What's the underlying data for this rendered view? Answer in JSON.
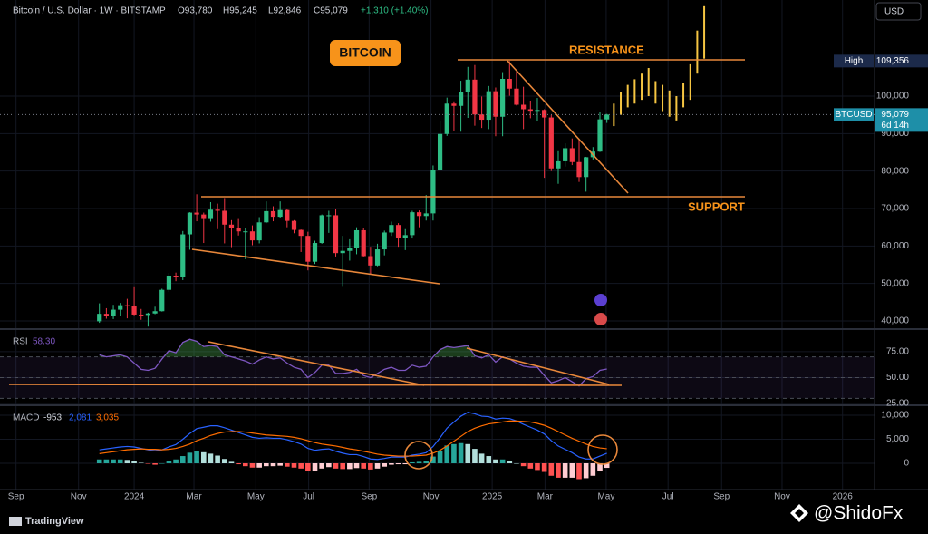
{
  "header": {
    "symbol": "Bitcoin / U.S. Dollar · 1W · BITSTAMP",
    "open": "O93,780",
    "high": "H95,245",
    "low": "L92,846",
    "close": "C95,079",
    "change": "+1,310 (+1.40%)",
    "currency": "USD",
    "footer": "TradingView",
    "watermark": "@ShidoFx"
  },
  "annotations": {
    "badge": "BITCOIN",
    "resistance": "RESISTANCE",
    "support": "SUPPORT"
  },
  "chart_data": [
    {
      "type": "candlestick",
      "title": "Bitcoin / U.S. Dollar",
      "up_color": "#2ebd85",
      "down_color": "#f23645",
      "open": [
        39900,
        41900,
        41400,
        43000,
        44200,
        43900,
        41700,
        41600,
        42000,
        42600,
        48300,
        52100,
        51700,
        63100,
        68900,
        68400,
        67200,
        69700,
        69400,
        65700,
        64900,
        63900,
        63900,
        61500,
        66300,
        69300,
        67800,
        69600,
        66700,
        64300,
        62700,
        55800,
        60800,
        68200,
        68200,
        58100,
        58700,
        59400,
        64200,
        57300,
        54800,
        59100,
        63600,
        65600,
        62100,
        62900,
        69000,
        68000,
        68700,
        80400,
        89900,
        98000,
        97400,
        101200,
        104400,
        95100,
        93700,
        101300,
        94500,
        104600,
        102000,
        97700,
        96500,
        96100,
        96300,
        94300,
        80700,
        82600,
        86100,
        82400,
        78400,
        83700,
        85200,
        93780
      ],
      "high": [
        44700,
        43400,
        44300,
        44800,
        45900,
        49000,
        43200,
        42200,
        43800,
        48600,
        52800,
        52900,
        64000,
        69000,
        73800,
        68900,
        71700,
        71300,
        72800,
        66900,
        67200,
        64700,
        65500,
        67700,
        71900,
        70600,
        71900,
        70000,
        66900,
        64400,
        63800,
        61400,
        68400,
        69400,
        70000,
        62700,
        61800,
        65000,
        64900,
        59800,
        60600,
        64100,
        66500,
        66100,
        64500,
        69400,
        69500,
        73600,
        81500,
        93500,
        99600,
        98600,
        104100,
        107800,
        108300,
        99900,
        102700,
        102300,
        106400,
        109356,
        106500,
        102500,
        98800,
        99500,
        96500,
        95000,
        85300,
        87400,
        88700,
        88500,
        83800,
        86400,
        95800,
        95245
      ],
      "low": [
        39500,
        40600,
        40500,
        41300,
        40700,
        41500,
        40300,
        38500,
        41800,
        42500,
        47700,
        50600,
        50900,
        59000,
        66600,
        60800,
        66500,
        64500,
        60700,
        59700,
        62800,
        56500,
        60200,
        60700,
        66100,
        66600,
        67500,
        65000,
        63400,
        58400,
        53500,
        55200,
        60600,
        63500,
        57200,
        49100,
        56100,
        57800,
        57200,
        52600,
        54600,
        57500,
        62700,
        59800,
        58900,
        62000,
        65000,
        66800,
        66800,
        80200,
        89400,
        90700,
        90500,
        94200,
        92100,
        91500,
        91200,
        89300,
        89300,
        100100,
        97500,
        91200,
        94100,
        93400,
        78200,
        80000,
        76600,
        81200,
        81600,
        77100,
        74500,
        83100,
        85100,
        92846
      ],
      "close": [
        41900,
        41400,
        43000,
        44200,
        43900,
        41700,
        41600,
        42000,
        42600,
        48300,
        52100,
        51700,
        63100,
        68900,
        68400,
        67200,
        69700,
        69400,
        65700,
        64900,
        63900,
        63900,
        61500,
        66300,
        69300,
        67800,
        69600,
        66700,
        64300,
        62700,
        55800,
        60800,
        68200,
        68200,
        58100,
        58700,
        59400,
        64200,
        57300,
        54800,
        59100,
        63600,
        65600,
        62100,
        62900,
        69000,
        68000,
        68700,
        80400,
        89900,
        98000,
        97400,
        101200,
        104400,
        95100,
        93700,
        101300,
        94500,
        104600,
        102000,
        97700,
        96500,
        96100,
        96300,
        94300,
        80700,
        82600,
        86100,
        82400,
        78400,
        83700,
        85200,
        93800,
        95079
      ],
      "projection_color": "#f5c542",
      "projection_x": [
        74,
        75,
        76,
        77,
        78,
        79,
        80,
        81,
        82,
        83,
        84,
        85,
        86,
        87
      ],
      "projection_low": [
        92000,
        95000,
        97000,
        98000,
        99000,
        100000,
        98000,
        96000,
        94500,
        93500,
        97000,
        99000,
        106000,
        110000
      ],
      "projection_high": [
        98000,
        101000,
        103000,
        104500,
        106000,
        107500,
        104000,
        103000,
        101500,
        100000,
        103500,
        108500,
        117500,
        124000
      ],
      "xlim": [
        -13,
        111.5
      ],
      "xticks": [
        {
          "value": -12,
          "label": "Sep"
        },
        {
          "value": -3,
          "label": "Nov"
        },
        {
          "value": 5,
          "label": "2024"
        },
        {
          "value": 13.6,
          "label": "Mar"
        },
        {
          "value": 22.5,
          "label": "May"
        },
        {
          "value": 30.1,
          "label": "Jul"
        },
        {
          "value": 38.8,
          "label": "Sep"
        },
        {
          "value": 47.7,
          "label": "Nov"
        },
        {
          "value": 56.5,
          "label": "2025"
        },
        {
          "value": 64.1,
          "label": "Mar"
        },
        {
          "value": 72.9,
          "label": "May"
        },
        {
          "value": 81.8,
          "label": "Jul"
        },
        {
          "value": 89.5,
          "label": "Sep"
        },
        {
          "value": 98.2,
          "label": "Nov"
        },
        {
          "value": 106.9,
          "label": "2026"
        }
      ],
      "ylim": [
        38064,
        125650
      ],
      "yticks": [
        {
          "value": 40000,
          "label": "40,000"
        },
        {
          "value": 50000,
          "label": "50,000"
        },
        {
          "value": 60000,
          "label": "60,000"
        },
        {
          "value": 70000,
          "label": "70,000"
        },
        {
          "value": 80000,
          "label": "80,000"
        },
        {
          "value": 90000,
          "label": "90,000"
        },
        {
          "value": 100000,
          "label": "100,000"
        }
      ],
      "price_labels": [
        {
          "name": "High",
          "value": 109356,
          "label": "109,356",
          "color": "#1c2a4a"
        },
        {
          "name": "BTCUSD",
          "value": 95079,
          "label": "95,079",
          "countdown": "6d 14h",
          "color": "#1e8fa8"
        }
      ]
    },
    {
      "type": "line",
      "title": "RSI",
      "color": "#7e57c2",
      "value_label": "58.30",
      "overbought_color": "#4caf50",
      "values": [
        72,
        70,
        71,
        72,
        70,
        64,
        58,
        57,
        59,
        68,
        76,
        74,
        84,
        87,
        85,
        80,
        81,
        80,
        72,
        70,
        68,
        66,
        63,
        67,
        70,
        68,
        69,
        64,
        60,
        58,
        50,
        55,
        62,
        62,
        54,
        54,
        55,
        58,
        52,
        50,
        54,
        58,
        60,
        57,
        57,
        62,
        60,
        61,
        70,
        77,
        80,
        79,
        80,
        81,
        71,
        69,
        72,
        65,
        70,
        68,
        64,
        61,
        60,
        60,
        52,
        45,
        47,
        50,
        46,
        42,
        49,
        51,
        57,
        58.3
      ],
      "ylim": [
        23.3,
        94.2
      ],
      "yticks": [
        {
          "value": 75,
          "label": "75.00"
        },
        {
          "value": 50,
          "label": "50.00"
        },
        {
          "value": 25,
          "label": "25.00"
        }
      ],
      "levels": [
        70,
        50,
        30
      ]
    },
    {
      "type": "macd",
      "title": "MACD",
      "histogram": {
        "value_label": "-953",
        "colors": [
          "#26a69a",
          "#b2dfdb",
          "#ffcdd2",
          "#ff5252"
        ],
        "values": [
          800,
          800,
          800,
          800,
          700,
          500,
          100,
          -100,
          -300,
          0,
          500,
          800,
          1500,
          2200,
          2500,
          2300,
          2000,
          1600,
          900,
          300,
          -200,
          -600,
          -900,
          -900,
          -600,
          -600,
          -500,
          -700,
          -900,
          -1100,
          -1600,
          -1600,
          -1100,
          -800,
          -1100,
          -1200,
          -1200,
          -1000,
          -1100,
          -1300,
          -1100,
          -700,
          -300,
          -200,
          -200,
          200,
          300,
          500,
          1400,
          2600,
          3700,
          4000,
          4200,
          4000,
          3000,
          2000,
          1500,
          800,
          800,
          500,
          0,
          -600,
          -1100,
          -1400,
          -1800,
          -2600,
          -3000,
          -3000,
          -3000,
          -3300,
          -3100,
          -2600,
          -1700,
          -953
        ]
      },
      "macd": {
        "color": "#2962ff",
        "value_label": "2,081",
        "values": [
          2800,
          3000,
          3200,
          3400,
          3500,
          3400,
          3100,
          2800,
          2600,
          2800,
          3400,
          3900,
          5000,
          6200,
          7200,
          7500,
          7800,
          7800,
          7400,
          6900,
          6400,
          5900,
          5400,
          5200,
          5300,
          5200,
          5200,
          4900,
          4500,
          4000,
          3100,
          2700,
          2900,
          3000,
          2500,
          2100,
          1800,
          1800,
          1400,
          900,
          800,
          1000,
          1300,
          1300,
          1300,
          1700,
          1900,
          2200,
          3500,
          5300,
          7300,
          8600,
          9800,
          10600,
          10300,
          9800,
          9700,
          9200,
          9400,
          9300,
          8800,
          8100,
          7500,
          6900,
          6100,
          4700,
          3600,
          2900,
          2200,
          1300,
          900,
          900,
          1500,
          2081
        ]
      },
      "signal": {
        "color": "#ff6d00",
        "value_label": "3,035",
        "values": [
          2000,
          2200,
          2400,
          2600,
          2800,
          2900,
          3000,
          2900,
          2900,
          2800,
          2900,
          3100,
          3500,
          4000,
          4700,
          5200,
          5800,
          6200,
          6500,
          6600,
          6600,
          6500,
          6300,
          6100,
          5900,
          5800,
          5700,
          5600,
          5400,
          5100,
          4700,
          4300,
          4000,
          3800,
          3600,
          3300,
          3000,
          2800,
          2500,
          2200,
          1900,
          1700,
          1600,
          1500,
          1500,
          1500,
          1600,
          1700,
          2100,
          2700,
          3600,
          4600,
          5600,
          6600,
          7300,
          7800,
          8200,
          8400,
          8600,
          8800,
          8800,
          8700,
          8600,
          8300,
          7900,
          7300,
          6600,
          5900,
          5200,
          4600,
          4000,
          3500,
          3200,
          3035
        ]
      },
      "ylim": [
        -5472,
        11509
      ],
      "yticks": [
        {
          "value": 10000,
          "label": "10,000"
        },
        {
          "value": 5000,
          "label": "5,000"
        },
        0
      ]
    }
  ]
}
